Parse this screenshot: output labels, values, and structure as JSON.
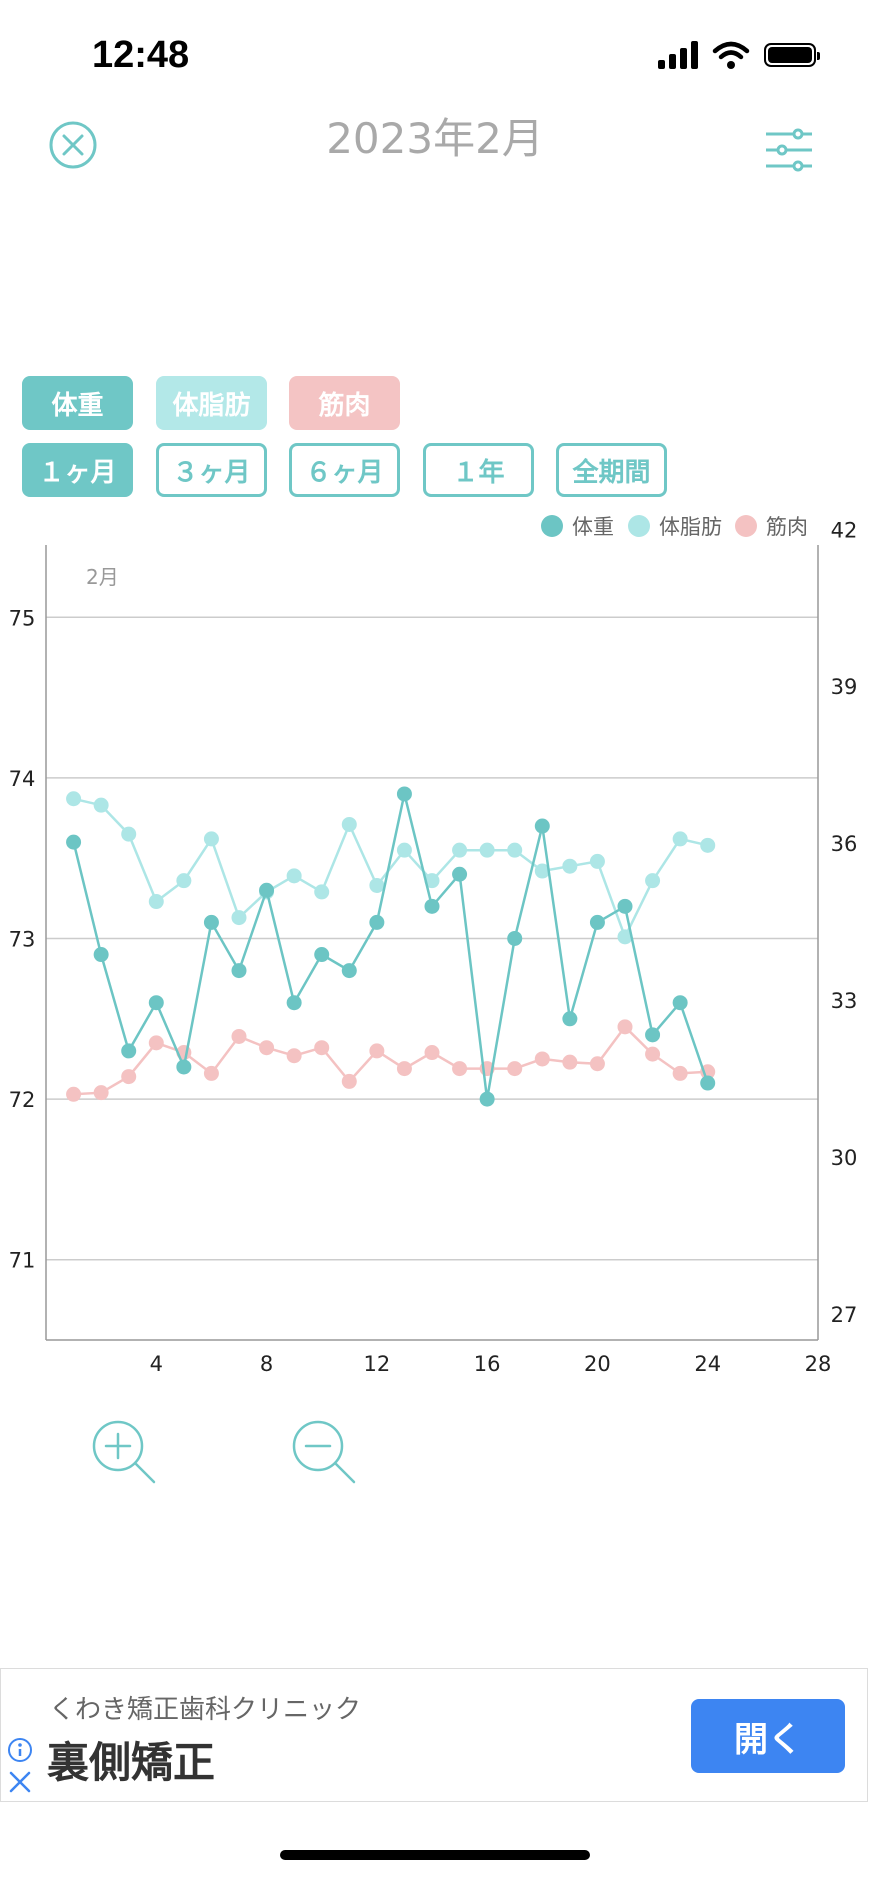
{
  "status": {
    "time": "12:48"
  },
  "header": {
    "title": "2023年2月",
    "close_icon": "close-circle-icon",
    "settings_icon": "sliders-icon"
  },
  "toggles": [
    {
      "label": "体重",
      "color": "#6fc7c6"
    },
    {
      "label": "体脂肪",
      "color": "#b3e8e8"
    },
    {
      "label": "筋肉",
      "color": "#f4c4c4"
    }
  ],
  "periods": [
    {
      "label": "１ヶ月",
      "active": true
    },
    {
      "label": "３ヶ月",
      "active": false
    },
    {
      "label": "６ヶ月",
      "active": false
    },
    {
      "label": "１年",
      "active": false
    },
    {
      "label": "全期間",
      "active": false
    }
  ],
  "chart_data": {
    "type": "line",
    "annotation": "2月",
    "x": [
      1,
      2,
      3,
      4,
      5,
      6,
      7,
      8,
      9,
      10,
      11,
      12,
      13,
      14,
      15,
      16,
      17,
      18,
      19,
      20,
      21,
      22,
      23,
      24
    ],
    "xlim": [
      0,
      28
    ],
    "xticks": [
      4,
      8,
      12,
      16,
      20,
      24,
      28
    ],
    "y_left": {
      "ylim": [
        70.5,
        75.45
      ],
      "ticks": [
        71,
        72,
        73,
        74,
        75
      ]
    },
    "y_right": {
      "ylim": [
        26.5,
        41.7
      ],
      "ticks": [
        27,
        30,
        33,
        36,
        39,
        42
      ]
    },
    "grid": true,
    "legend_position": "top-right",
    "series": [
      {
        "name": "体重",
        "axis": "left",
        "color": "#6cc5c4",
        "values": [
          73.6,
          72.9,
          72.3,
          72.6,
          72.2,
          73.1,
          72.8,
          73.3,
          72.6,
          72.9,
          72.8,
          73.1,
          73.9,
          73.2,
          73.4,
          72.0,
          73.0,
          73.7,
          72.5,
          73.1,
          73.2,
          72.4,
          72.6,
          72.1
        ]
      },
      {
        "name": "体脂肪",
        "axis": "left",
        "color": "#ade6e6",
        "values": [
          73.87,
          73.83,
          73.65,
          73.23,
          73.36,
          73.62,
          73.13,
          73.29,
          73.39,
          73.29,
          73.71,
          73.33,
          73.55,
          73.36,
          73.55,
          73.55,
          73.55,
          73.42,
          73.45,
          73.48,
          73.01,
          73.36,
          73.62,
          73.58
        ]
      },
      {
        "name": "筋肉",
        "axis": "left",
        "color": "#f4c2c2",
        "values": [
          72.03,
          72.04,
          72.14,
          72.35,
          72.29,
          72.16,
          72.39,
          72.32,
          72.27,
          72.32,
          72.11,
          72.3,
          72.19,
          72.29,
          72.19,
          72.19,
          72.19,
          72.25,
          72.23,
          72.22,
          72.45,
          72.28,
          72.16,
          72.17
        ]
      }
    ]
  },
  "zoom": {
    "in_icon": "zoom-in-icon",
    "out_icon": "zoom-out-icon"
  },
  "ad": {
    "sponsor": "くわき矯正歯科クリニック",
    "headline": "裏側矯正",
    "button": "開く",
    "info_icon": "info-icon",
    "close_icon": "close-icon"
  }
}
